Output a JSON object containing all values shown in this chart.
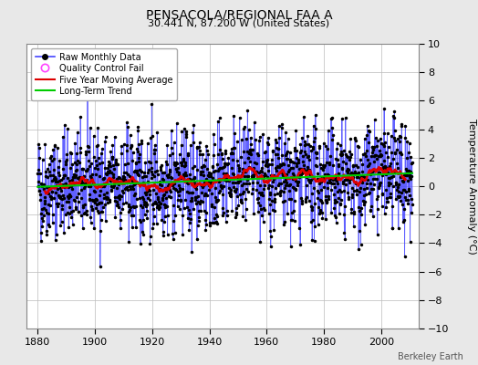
{
  "title": "PENSACOLA/REGIONAL FAA A",
  "subtitle": "30.441 N, 87.200 W (United States)",
  "credit": "Berkeley Earth",
  "ylabel": "Temperature Anomaly (°C)",
  "ylim": [
    -10,
    10
  ],
  "yticks": [
    -10,
    -8,
    -6,
    -4,
    -2,
    0,
    2,
    4,
    6,
    8,
    10
  ],
  "xlim": [
    1876,
    2013
  ],
  "xticks": [
    1880,
    1900,
    1920,
    1940,
    1960,
    1980,
    2000
  ],
  "start_year": 1880,
  "end_year": 2011,
  "seed": 42,
  "noise_std": 1.8,
  "bg_color": "#e8e8e8",
  "plot_bg_color": "#ffffff",
  "raw_line_color": "#4444ff",
  "raw_dot_color": "#000000",
  "qc_fail_color": "#ff44ff",
  "moving_avg_color": "#dd0000",
  "trend_color": "#00cc00",
  "moving_avg_window": 60,
  "grid_color": "#bbbbbb",
  "title_fontsize": 10,
  "subtitle_fontsize": 8,
  "tick_fontsize": 8,
  "ylabel_fontsize": 8
}
